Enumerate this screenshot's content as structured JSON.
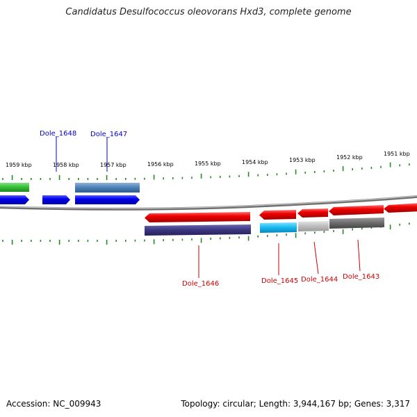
{
  "title": "Candidatus Desulfococcus oleovorans Hxd3, complete genome",
  "footer": {
    "accession": "Accession: NC_009943",
    "stats": "Topology: circular; Length: 3,944,167 bp; Genes: 3,317"
  },
  "ticks": [
    "1959 kbp",
    "1958 kbp",
    "1957 kbp",
    "1956 kbp",
    "1955 kbp",
    "1954 kbp",
    "1953 kbp",
    "1952 kbp",
    "1951 kbp"
  ],
  "gene_labels": [
    {
      "id": "Dole_1648",
      "strand": "forward",
      "color": "#0000cc"
    },
    {
      "id": "Dole_1647",
      "strand": "forward",
      "color": "#0000cc"
    },
    {
      "id": "Dole_1646",
      "strand": "reverse",
      "color": "#cc0000"
    },
    {
      "id": "Dole_1645",
      "strand": "reverse",
      "color": "#cc0000"
    },
    {
      "id": "Dole_1644",
      "strand": "reverse",
      "color": "#cc0000"
    },
    {
      "id": "Dole_1643",
      "strand": "reverse",
      "color": "#cc0000"
    }
  ],
  "colors": {
    "forward_gene": "#0000ee",
    "reverse_gene": "#ee0000",
    "tick": "#228b22",
    "backbone": "#808080"
  }
}
